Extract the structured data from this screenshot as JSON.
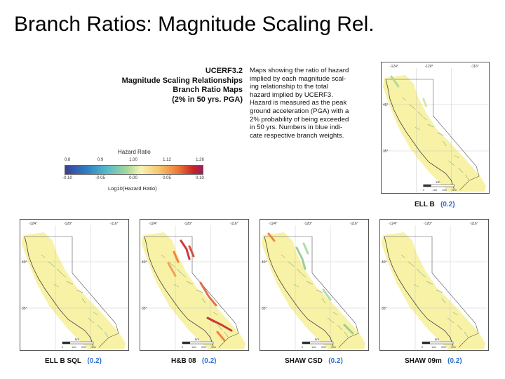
{
  "title": "Branch Ratios: Magnitude Scaling Rel.",
  "heading_lines": [
    "UCERF3.2",
    "Magnitude Scaling Relationships",
    "Branch Ratio Maps",
    "(2% in 50 yrs. PGA)"
  ],
  "description_lines": [
    "Maps showing the ratio of hazard",
    "implied by each magnitude scal-",
    "ing relationship to the total",
    "hazard implied by UCERF3.",
    "Hazard is measured as the peak",
    "ground acceleration (PGA) with a",
    "2% probability of being exceeded",
    "in 50 yrs. Numbers in blue indi-",
    "cate respective branch weights."
  ],
  "legend": {
    "title": "Hazard Ratio",
    "ratio_ticks": [
      "0.8",
      "0.9",
      "1.00",
      "1.12",
      "1.26"
    ],
    "log_ticks": [
      "-0.10",
      "-0.05",
      "0.00",
      "0.05",
      "0.10"
    ],
    "axis_label": "Log10(Hazard Ratio)",
    "colors": [
      "#3b3f98",
      "#2f80c1",
      "#a6d99a",
      "#f7f3b6",
      "#ec7a34",
      "#c4262a"
    ]
  },
  "maps": [
    {
      "name": "ELL B",
      "weight": "(0.2)",
      "lon_labels": [
        "-124°",
        "-120°",
        "-116°"
      ],
      "lat_labels": [
        "40°",
        "35°"
      ],
      "scale_unit": "km",
      "scale_ticks": [
        "0",
        "100",
        "200",
        "300"
      ]
    },
    {
      "name": "ELL B SQL",
      "weight": "(0.2)",
      "lon_labels": [
        "-124°",
        "-120°",
        "-116°"
      ],
      "lat_labels": [
        "40°",
        "35°"
      ],
      "scale_unit": "km",
      "scale_ticks": [
        "0",
        "100",
        "200",
        "300"
      ]
    },
    {
      "name": "H&B 08",
      "weight": "(0.2)",
      "lon_labels": [
        "-124°",
        "-120°",
        "-116°"
      ],
      "lat_labels": [
        "40°",
        "35°"
      ],
      "scale_unit": "km",
      "scale_ticks": [
        "0",
        "100",
        "200",
        "300"
      ]
    },
    {
      "name": "SHAW CSD",
      "weight": "(0.2)",
      "lon_labels": [
        "-124°",
        "-120°",
        "-116°"
      ],
      "lat_labels": [
        "40°",
        "35°"
      ],
      "scale_unit": "km",
      "scale_ticks": [
        "0",
        "100",
        "200",
        "300"
      ]
    },
    {
      "name": "SHAW 09m",
      "weight": "(0.2)",
      "lon_labels": [
        "-124°",
        "-120°",
        "-116°"
      ],
      "lat_labels": [
        "40°",
        "35°"
      ],
      "scale_unit": "km",
      "scale_ticks": [
        "0",
        "100",
        "200",
        "300"
      ]
    }
  ]
}
